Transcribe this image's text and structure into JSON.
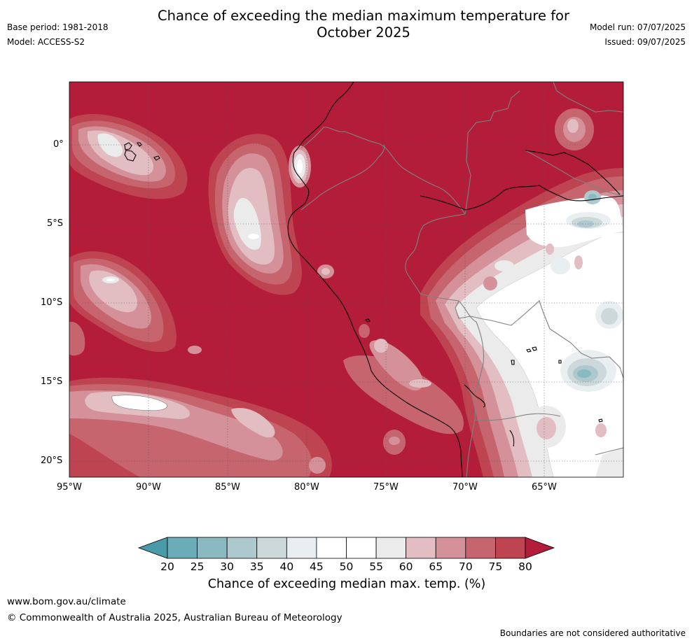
{
  "header": {
    "title_line1": "Chance of exceeding the median maximum temperature for",
    "title_line2": "October 2025",
    "base_period": "Base period: 1981-2018",
    "model": "Model: ACCESS-S2",
    "model_run": "Model run: 07/07/2025",
    "issued": "Issued: 09/07/2025"
  },
  "map": {
    "lat_labels": [
      "0°",
      "5°S",
      "10°S",
      "15°S",
      "20°S"
    ],
    "lon_labels": [
      "95°W",
      "90°W",
      "85°W",
      "80°W",
      "75°W",
      "70°W",
      "65°W"
    ],
    "background_color": "#b41d3a",
    "coast_color": "#000000",
    "border_color": "#808080"
  },
  "colorbar": {
    "tick_labels": [
      "20",
      "25",
      "30",
      "35",
      "40",
      "45",
      "50",
      "55",
      "60",
      "65",
      "70",
      "75",
      "80"
    ],
    "colors": [
      "#4a9ba9",
      "#6aacb8",
      "#8ab9c1",
      "#adc9cd",
      "#cdd8da",
      "#e9eef0",
      "#ffffff",
      "#ffffff",
      "#ebebeb",
      "#e2bdc1",
      "#d4919a",
      "#c7656f",
      "#be4452",
      "#b41d3a"
    ],
    "title": "Chance of exceeding median max. temp. (%)"
  },
  "footer": {
    "website": "www.bom.gov.au/climate",
    "copyright": "© Commonwealth of Australia 2025, Australian Bureau of Meteorology",
    "disclaimer": "Boundaries are not considered authoritative"
  }
}
